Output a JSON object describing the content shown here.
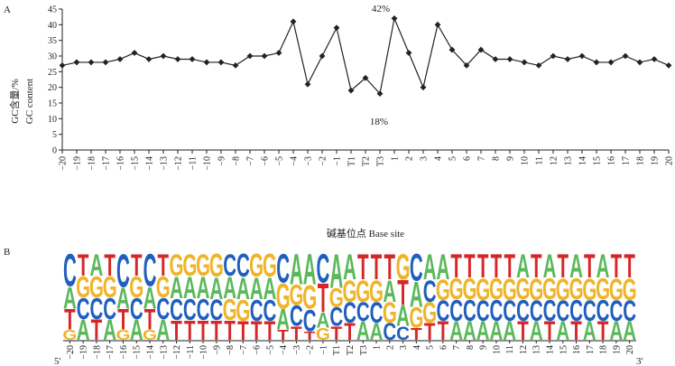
{
  "panel_a": {
    "label": "A",
    "ylabel_cn": "GC含量/%",
    "ylabel_en": "GC content",
    "xlabel": "碱基位点 Base site",
    "max_label": "42%",
    "min_label": "18%"
  },
  "panel_b": {
    "label": "B",
    "end_5": "5′",
    "end_3": "3′"
  },
  "colors": {
    "A": "#5cb85c",
    "T": "#d62728",
    "C": "#1f5fbf",
    "G": "#f0b429",
    "line": "#222222"
  },
  "chart_data": [
    {
      "type": "line",
      "title": "",
      "xlabel": "碱基位点 Base site",
      "ylabel": "GC含量/% GC content",
      "categories": [
        "-20",
        "-19",
        "-18",
        "-17",
        "-16",
        "-15",
        "-14",
        "-13",
        "-12",
        "-11",
        "-10",
        "-9",
        "-8",
        "-7",
        "-6",
        "-5",
        "-4",
        "-3",
        "-2",
        "-1",
        "T1",
        "T2",
        "T3",
        "1",
        "2",
        "3",
        "4",
        "5",
        "6",
        "7",
        "8",
        "9",
        "10",
        "11",
        "12",
        "13",
        "14",
        "15",
        "16",
        "17",
        "18",
        "19",
        "20"
      ],
      "x_tick_labels": [
        "−20",
        "−19",
        "−18",
        "−17",
        "−16",
        "−15",
        "−14",
        "−13",
        "−12",
        "−11",
        "−10",
        "−9",
        "−8",
        "−7",
        "−6",
        "−5",
        "−4",
        "−3",
        "−2",
        "−1",
        "T1",
        "T2",
        "T3",
        "1",
        "2",
        "3",
        "4",
        "5",
        "6",
        "7",
        "8",
        "9",
        "10",
        "11",
        "12",
        "13",
        "14",
        "15",
        "16",
        "17",
        "18",
        "19",
        "20"
      ],
      "values": [
        27,
        28,
        28,
        28,
        29,
        31,
        29,
        30,
        29,
        29,
        28,
        28,
        27,
        30,
        30,
        31,
        41,
        21,
        30,
        39,
        19,
        23,
        18,
        42,
        31,
        20,
        40,
        32,
        27,
        32,
        29,
        29,
        28,
        27,
        30,
        29,
        30,
        28,
        28,
        30,
        28,
        29,
        27
      ],
      "ylim": [
        0,
        45
      ],
      "yticks": [
        0,
        5,
        10,
        15,
        20,
        25,
        30,
        35,
        40,
        45
      ],
      "annotations": [
        {
          "category": "1",
          "value": 42,
          "text": "42%"
        },
        {
          "category": "T3",
          "value": 18,
          "text": "18%"
        }
      ],
      "marker": "diamond",
      "grid": false
    },
    {
      "type": "sequence-logo",
      "title": "",
      "x_tick_labels": [
        "−20",
        "−19",
        "−18",
        "−17",
        "−16",
        "−15",
        "−14",
        "−13",
        "−12",
        "−11",
        "−10",
        "−9",
        "−8",
        "−7",
        "−6",
        "−5",
        "−4",
        "−3",
        "−2",
        "−1",
        "T1",
        "T2",
        "T3",
        "1",
        "2",
        "3",
        "4",
        "5",
        "6",
        "7",
        "8",
        "9",
        "10",
        "11",
        "12",
        "13",
        "14",
        "15",
        "16",
        "17",
        "18",
        "19",
        "20"
      ],
      "columns": [
        {
          "A": 0.26,
          "T": 0.24,
          "G": 0.12,
          "C": 0.38
        },
        {
          "T": 0.26,
          "A": 0.24,
          "C": 0.25,
          "G": 0.25
        },
        {
          "A": 0.26,
          "T": 0.24,
          "C": 0.25,
          "G": 0.25
        },
        {
          "T": 0.26,
          "A": 0.24,
          "C": 0.25,
          "G": 0.25
        },
        {
          "A": 0.25,
          "T": 0.24,
          "G": 0.12,
          "C": 0.39
        },
        {
          "T": 0.26,
          "A": 0.24,
          "C": 0.25,
          "G": 0.25
        },
        {
          "A": 0.26,
          "T": 0.24,
          "G": 0.12,
          "C": 0.38
        },
        {
          "T": 0.26,
          "A": 0.24,
          "C": 0.25,
          "G": 0.25
        },
        {
          "A": 0.26,
          "T": 0.23,
          "C": 0.25,
          "G": 0.26
        },
        {
          "A": 0.26,
          "T": 0.23,
          "C": 0.25,
          "G": 0.26
        },
        {
          "A": 0.26,
          "T": 0.23,
          "C": 0.25,
          "G": 0.26
        },
        {
          "A": 0.26,
          "T": 0.23,
          "C": 0.24,
          "G": 0.27
        },
        {
          "A": 0.26,
          "T": 0.23,
          "G": 0.25,
          "C": 0.26
        },
        {
          "T": 0.22,
          "A": 0.26,
          "G": 0.25,
          "C": 0.27
        },
        {
          "T": 0.22,
          "A": 0.26,
          "C": 0.25,
          "G": 0.27
        },
        {
          "T": 0.22,
          "A": 0.26,
          "C": 0.25,
          "G": 0.27
        },
        {
          "A": 0.24,
          "T": 0.12,
          "C": 0.34,
          "G": 0.3
        },
        {
          "A": 0.36,
          "T": 0.16,
          "C": 0.24,
          "G": 0.24
        },
        {
          "A": 0.36,
          "T": 0.1,
          "C": 0.26,
          "G": 0.28
        },
        {
          "T": 0.34,
          "A": 0.18,
          "C": 0.34,
          "G": 0.14
        },
        {
          "A": 0.4,
          "T": 0.16,
          "C": 0.22,
          "G": 0.22
        },
        {
          "A": 0.3,
          "T": 0.2,
          "C": 0.24,
          "G": 0.26
        },
        {
          "T": 0.3,
          "A": 0.22,
          "C": 0.22,
          "G": 0.26
        },
        {
          "T": 0.3,
          "A": 0.2,
          "G": 0.26,
          "C": 0.24
        },
        {
          "T": 0.3,
          "A": 0.26,
          "C": 0.2,
          "G": 0.24
        },
        {
          "T": 0.3,
          "A": 0.24,
          "C": 0.16,
          "G": 0.3
        },
        {
          "A": 0.3,
          "T": 0.14,
          "G": 0.24,
          "C": 0.32
        },
        {
          "A": 0.3,
          "T": 0.2,
          "C": 0.26,
          "G": 0.24
        },
        {
          "A": 0.3,
          "T": 0.22,
          "C": 0.24,
          "G": 0.24
        },
        {
          "T": 0.28,
          "A": 0.22,
          "C": 0.25,
          "G": 0.25
        },
        {
          "T": 0.28,
          "A": 0.22,
          "C": 0.25,
          "G": 0.25
        },
        {
          "T": 0.28,
          "A": 0.22,
          "C": 0.24,
          "G": 0.26
        },
        {
          "T": 0.28,
          "A": 0.22,
          "C": 0.25,
          "G": 0.25
        },
        {
          "T": 0.28,
          "A": 0.22,
          "C": 0.24,
          "G": 0.26
        },
        {
          "A": 0.28,
          "T": 0.22,
          "C": 0.25,
          "G": 0.25
        },
        {
          "T": 0.28,
          "A": 0.22,
          "C": 0.24,
          "G": 0.26
        },
        {
          "A": 0.28,
          "T": 0.22,
          "C": 0.25,
          "G": 0.25
        },
        {
          "T": 0.28,
          "A": 0.22,
          "C": 0.24,
          "G": 0.26
        },
        {
          "A": 0.28,
          "T": 0.22,
          "C": 0.25,
          "G": 0.25
        },
        {
          "T": 0.28,
          "A": 0.22,
          "C": 0.24,
          "G": 0.26
        },
        {
          "A": 0.28,
          "T": 0.22,
          "C": 0.25,
          "G": 0.25
        },
        {
          "T": 0.28,
          "A": 0.22,
          "C": 0.24,
          "G": 0.26
        },
        {
          "T": 0.28,
          "A": 0.22,
          "C": 0.24,
          "G": 0.26
        }
      ]
    }
  ]
}
